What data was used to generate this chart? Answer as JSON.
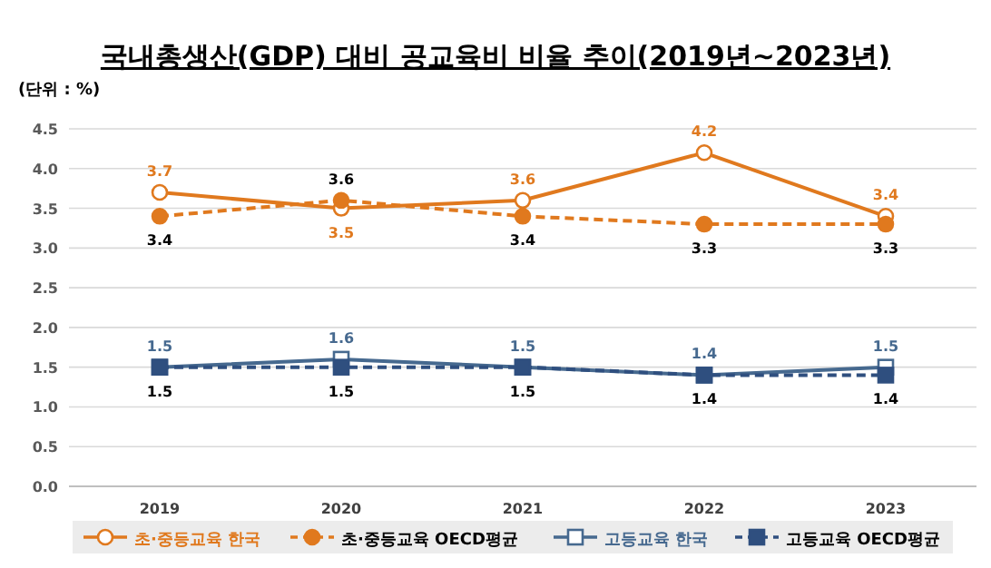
{
  "chart_data": {
    "type": "line",
    "title": "국내총생산(GDP) 대비 공교육비 비율 추이(2019년~2023년)",
    "annotations": [
      "(단위 : %)"
    ],
    "categories": [
      "2019",
      "2020",
      "2021",
      "2022",
      "2023"
    ],
    "series": [
      {
        "name": "초·중등교육 한국",
        "color": "#e0791e",
        "values": [
          3.7,
          3.5,
          3.6,
          4.2,
          3.4
        ],
        "marker": "circle",
        "line_style": "solid"
      },
      {
        "name": "초·중등교육 OECD평균",
        "color": "#e0791e",
        "values": [
          3.4,
          3.6,
          3.4,
          3.3,
          3.3
        ],
        "marker": "circle",
        "line_style": "dashed"
      },
      {
        "name": "고등교육 한국",
        "color": "#46698f",
        "values": [
          1.5,
          1.6,
          1.5,
          1.4,
          1.5
        ],
        "marker": "square",
        "line_style": "solid"
      },
      {
        "name": "고등교육 OECD평균",
        "color": "#2f4f7f",
        "values": [
          1.5,
          1.5,
          1.5,
          1.4,
          1.4
        ],
        "marker": "square",
        "line_style": "dashed"
      }
    ],
    "ylim": [
      0,
      4.5
    ],
    "yticks": [
      {
        "value": 0,
        "label": "0.0"
      },
      {
        "value": 0.5,
        "label": "0.5"
      },
      {
        "value": 1,
        "label": "1.0"
      },
      {
        "value": 1.5,
        "label": "1.5"
      },
      {
        "value": 2,
        "label": "2.0"
      },
      {
        "value": 2.5,
        "label": "2.5"
      },
      {
        "value": 3,
        "label": "3.0"
      },
      {
        "value": 3.5,
        "label": "3.5"
      },
      {
        "value": 4,
        "label": "4.0"
      },
      {
        "value": 4.5,
        "label": "4.5"
      }
    ],
    "grid": "y",
    "legend": "bottom",
    "data_labels": true
  }
}
